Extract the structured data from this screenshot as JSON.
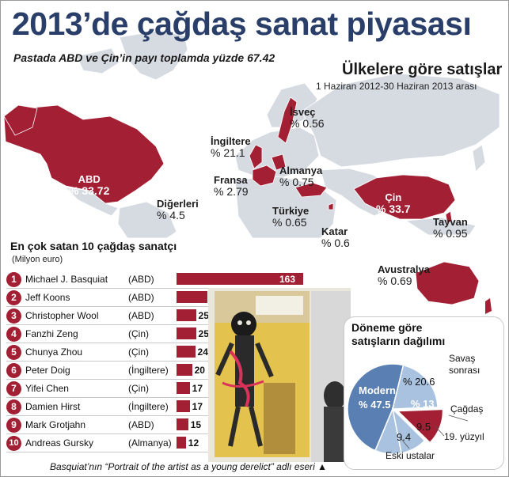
{
  "title": "2013’de çağdaş sanat piyasası",
  "subtitle": "Pastada ABD ve Çin’in payı toplamda yüzde 67.42",
  "map": {
    "title": "Ülkelere göre satışlar",
    "period": "1 Haziran 2012-30 Haziran 2013 arası",
    "countries": [
      {
        "name": "ABD",
        "share": "% 33.72"
      },
      {
        "name": "Çin",
        "share": "% 33.7"
      },
      {
        "name": "İsveç",
        "share": "% 0.56"
      },
      {
        "name": "İngiltere",
        "share": "% 21.1"
      },
      {
        "name": "Almanya",
        "share": "% 0.75"
      },
      {
        "name": "Fransa",
        "share": "% 2.79"
      },
      {
        "name": "Diğerleri",
        "share": "% 4.5"
      },
      {
        "name": "Türkiye",
        "share": "% 0.65"
      },
      {
        "name": "Katar",
        "share": "% 0.6"
      },
      {
        "name": "Tayvan",
        "share": "% 0.95"
      },
      {
        "name": "Avustralya",
        "share": "% 0.69"
      }
    ]
  },
  "ranking": {
    "title": "En çok satan 10 çağdaş sanatçı",
    "unit": "(Milyon euro)",
    "rows": [
      {
        "rank": "1",
        "name": "Michael J. Basquiat",
        "country": "(ABD)",
        "value": 163
      },
      {
        "rank": "2",
        "name": "Jeff Koons",
        "country": "(ABD)",
        "value": 40
      },
      {
        "rank": "3",
        "name": "Christopher Wool",
        "country": "(ABD)",
        "value": 25
      },
      {
        "rank": "4",
        "name": "Fanzhi Zeng",
        "country": "(Çin)",
        "value": 25
      },
      {
        "rank": "5",
        "name": "Chunya Zhou",
        "country": "(Çin)",
        "value": 24
      },
      {
        "rank": "6",
        "name": "Peter Doig",
        "country": "(İngiltere)",
        "value": 20
      },
      {
        "rank": "7",
        "name": "Yifei Chen",
        "country": "(Çin)",
        "value": 17
      },
      {
        "rank": "8",
        "name": "Damien Hirst",
        "country": "(İngiltere)",
        "value": 17
      },
      {
        "rank": "9",
        "name": "Mark Grotjahn",
        "country": "(ABD)",
        "value": 15
      },
      {
        "rank": "10",
        "name": "Andreas Gursky",
        "country": "(Almanya)",
        "value": 12
      }
    ]
  },
  "painting": {
    "caption": "Basquiat’nın “Portrait of the artist as a young derelict” adlı eseri ▲"
  },
  "colors": {
    "title": "#2a3e6a",
    "accent_red": "#a31f34",
    "map_land": "#d6dbe2",
    "map_sea": "#ffffff",
    "pie_blue_dark": "#5a7fb3",
    "pie_blue_light": "#a9c2df"
  },
  "chart_data": [
    {
      "type": "bar",
      "title": "En çok satan 10 çağdaş sanatçı",
      "ylabel": "(Milyon euro)",
      "categories": [
        "Michael J. Basquiat",
        "Jeff Koons",
        "Christopher Wool",
        "Fanzhi Zeng",
        "Chunya Zhou",
        "Peter Doig",
        "Yifei Chen",
        "Damien Hirst",
        "Mark Grotjahn",
        "Andreas Gursky"
      ],
      "values": [
        163,
        40,
        25,
        25,
        24,
        20,
        17,
        17,
        15,
        12
      ],
      "orientation": "horizontal"
    },
    {
      "type": "pie",
      "title": "Döneme göre satışların dağılımı",
      "slices": [
        {
          "label": "Modern",
          "value": 47.5,
          "text": "% 47.5",
          "color": "#5a7fb3"
        },
        {
          "label": "Savaş sonrası",
          "value": 20.6,
          "text": "% 20.6",
          "color": "#a9c2df"
        },
        {
          "label": "Çağdaş",
          "value": 13,
          "text": "% 13",
          "color": "#a31f34"
        },
        {
          "label": "19. yüzyıl",
          "value": 9.5,
          "text": "9.5",
          "color": "#a9c2df"
        },
        {
          "label": "Eski ustalar",
          "value": 9.4,
          "text": "9.4",
          "color": "#a9c2df"
        }
      ]
    }
  ]
}
